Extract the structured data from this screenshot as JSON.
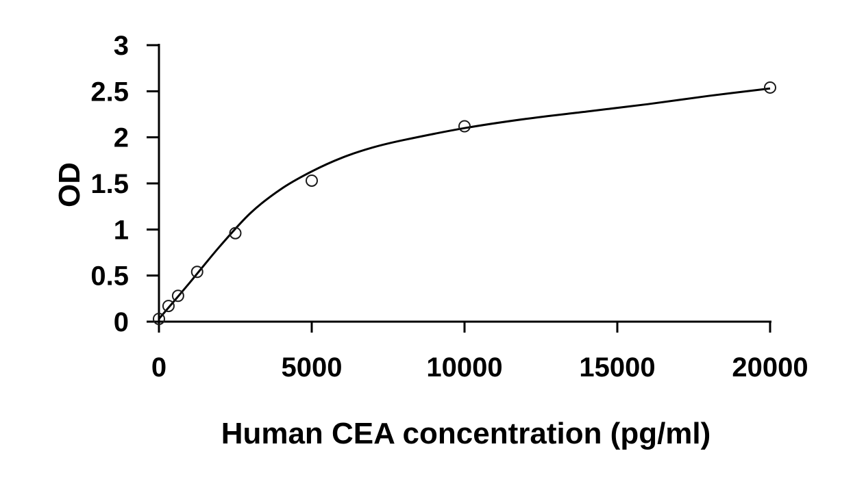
{
  "chart_data": {
    "type": "scatter",
    "title": "",
    "xlabel": "Human CEA concentration (pg/ml)",
    "ylabel": "OD",
    "xlim": [
      0,
      20000
    ],
    "ylim": [
      0,
      3
    ],
    "x_ticks": [
      0,
      5000,
      10000,
      15000,
      20000
    ],
    "y_ticks": [
      0,
      0.5,
      1,
      1.5,
      2,
      2.5,
      3
    ],
    "x_tick_labels": [
      "0",
      "5000",
      "10000",
      "15000",
      "20000"
    ],
    "y_tick_labels": [
      "0",
      "0.5",
      "1",
      "1.5",
      "2",
      "2.5",
      "3"
    ],
    "grid": false,
    "legend": "none",
    "marker": "open-circle",
    "fit_line": "smooth curve",
    "series": [
      {
        "x": [
          0,
          312.5,
          625,
          1250,
          2500,
          5000,
          10000,
          20000
        ],
        "y": [
          0.03,
          0.17,
          0.28,
          0.54,
          0.96,
          1.53,
          2.12,
          2.54
        ]
      }
    ],
    "fit_curve": {
      "x": [
        0,
        1000,
        2000,
        3000,
        4000,
        5000,
        6000,
        7000,
        8000,
        10000,
        12000,
        14000,
        16000,
        18000,
        20000
      ],
      "y": [
        0.03,
        0.42,
        0.82,
        1.18,
        1.44,
        1.63,
        1.78,
        1.89,
        1.97,
        2.1,
        2.2,
        2.28,
        2.36,
        2.45,
        2.53
      ]
    },
    "colors": {
      "axis": "#000000",
      "marker_stroke": "#1a1a1a",
      "curve": "#000000",
      "background": "#ffffff"
    }
  }
}
